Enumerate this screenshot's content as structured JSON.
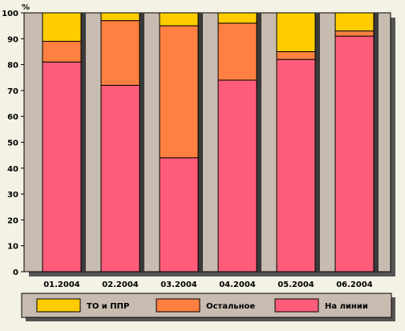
{
  "chart_data": {
    "type": "bar",
    "stacked": true,
    "ylabel": "%",
    "ylim": [
      0,
      100
    ],
    "yticks": [
      0,
      10,
      20,
      30,
      40,
      50,
      60,
      70,
      80,
      90,
      100
    ],
    "grid": false,
    "legend_position": "bottom",
    "categories": [
      "01.2004",
      "02.2004",
      "03.2004",
      "04.2004",
      "05.2004",
      "06.2004"
    ],
    "series": [
      {
        "name": "На линии",
        "color": "#ff5c7a",
        "values": [
          81,
          72,
          44,
          74,
          82,
          91
        ]
      },
      {
        "name": "Остальное",
        "color": "#ff8040",
        "values": [
          8,
          25,
          51,
          22,
          3,
          2
        ]
      },
      {
        "name": "ТО и ППР",
        "color": "#ffcc00",
        "values": [
          11,
          3,
          5,
          4,
          15,
          7
        ]
      }
    ],
    "legend_order": [
      2,
      1,
      0
    ]
  }
}
